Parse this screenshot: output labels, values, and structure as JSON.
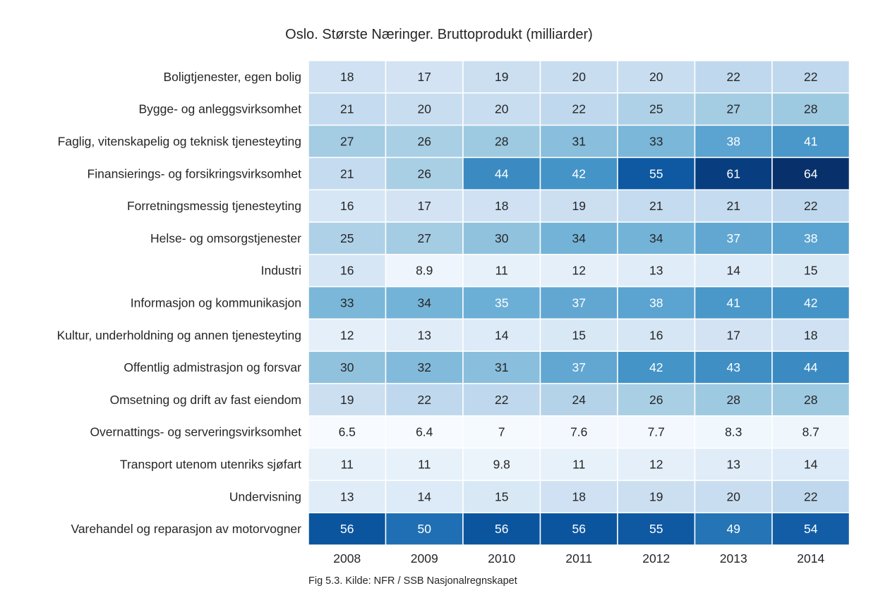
{
  "chart_data": {
    "type": "heatmap",
    "title": "Oslo. Største Næringer. Bruttoprodukt (milliarder)",
    "caption": "Fig 5.3. Kilde: NFR / SSB Nasjonalregnskapet",
    "colormap": "Blues",
    "x": [
      "2008",
      "2009",
      "2010",
      "2011",
      "2012",
      "2013",
      "2014"
    ],
    "y": [
      "Boligtjenester, egen bolig",
      "Bygge- og anleggsvirksomhet",
      "Faglig, vitenskapelig og teknisk tjenesteyting",
      "Finansierings- og forsikringsvirksomhet",
      "Forretningsmessig tjenesteyting",
      "Helse- og omsorgstjenester",
      "Industri",
      "Informasjon og kommunikasjon",
      "Kultur, underholdning og annen tjenesteyting",
      "Offentlig admistrasjon og forsvar",
      "Omsetning og drift av fast eiendom",
      "Overnattings- og serveringsvirksomhet",
      "Transport utenom utenriks sjøfart",
      "Undervisning",
      "Varehandel og reparasjon av motorvogner"
    ],
    "values": [
      [
        18,
        17,
        19,
        20,
        20,
        22,
        22
      ],
      [
        21,
        20,
        20,
        22,
        25,
        27,
        28
      ],
      [
        27,
        26,
        28,
        31,
        33,
        38,
        41
      ],
      [
        21,
        26,
        44,
        42,
        55,
        61,
        64
      ],
      [
        16,
        17,
        18,
        19,
        21,
        21,
        22
      ],
      [
        25,
        27,
        30,
        34,
        34,
        37,
        38
      ],
      [
        16,
        8.9,
        11,
        12,
        13,
        14,
        15
      ],
      [
        33,
        34,
        35,
        37,
        38,
        41,
        42
      ],
      [
        12,
        13,
        14,
        15,
        16,
        17,
        18
      ],
      [
        30,
        32,
        31,
        37,
        42,
        43,
        44
      ],
      [
        19,
        22,
        22,
        24,
        26,
        28,
        28
      ],
      [
        6.5,
        6.4,
        7,
        7.6,
        7.7,
        8.3,
        8.7
      ],
      [
        11,
        11,
        9.8,
        11,
        12,
        13,
        14
      ],
      [
        13,
        14,
        15,
        18,
        19,
        20,
        22
      ],
      [
        56,
        50,
        56,
        56,
        55,
        49,
        54
      ]
    ],
    "vmin": 6.4,
    "vmax": 64
  }
}
